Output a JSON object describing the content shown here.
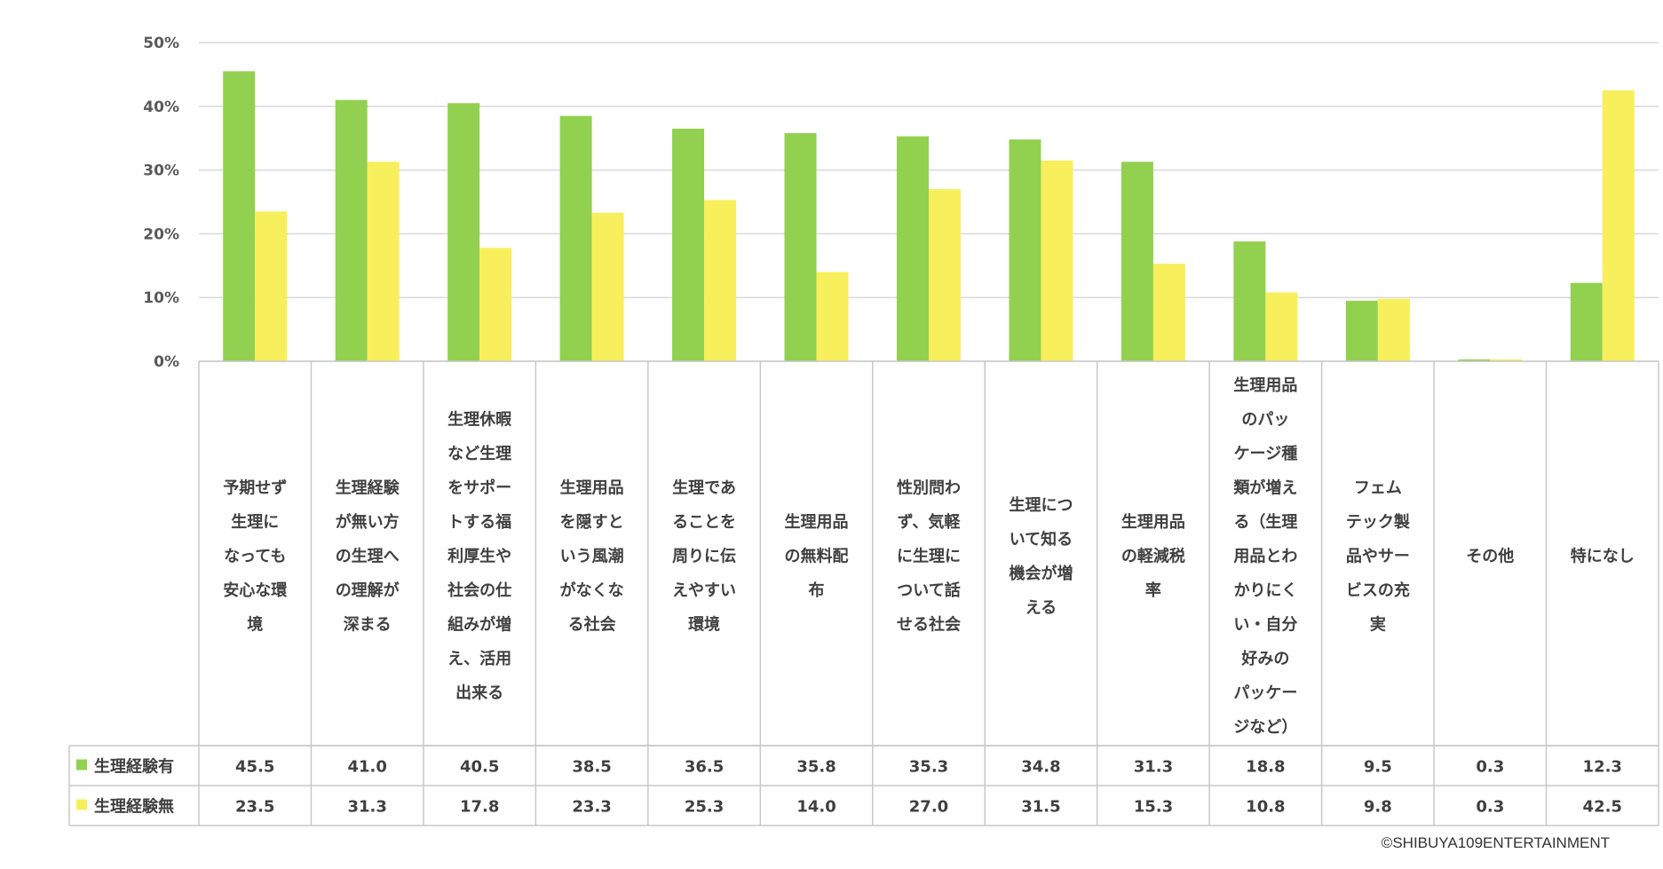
{
  "colors": {
    "series1": "#92d050",
    "series2": "#f8ef5c",
    "grid": "#d9d9d9",
    "border": "#c8c8c8"
  },
  "chart_data": {
    "type": "bar",
    "title": "",
    "xlabel": "",
    "ylabel": "",
    "ylim": [
      0,
      50
    ],
    "yticks": [
      "0%",
      "10%",
      "20%",
      "30%",
      "40%",
      "50%"
    ],
    "grid": true,
    "legend": "data-table-left",
    "categories": [
      [
        "予期せず",
        "生理に",
        "なっても",
        "安心な環",
        "境"
      ],
      [
        "生理経験",
        "が無い方",
        "の生理へ",
        "の理解が",
        "深まる"
      ],
      [
        "生理休暇",
        "など生理",
        "をサポー",
        "トする福",
        "利厚生や",
        "社会の仕",
        "組みが増",
        "え、活用",
        "出来る"
      ],
      [
        "生理用品",
        "を隠すと",
        "いう風潮",
        "がなくな",
        "る社会"
      ],
      [
        "生理であ",
        "ることを",
        "周りに伝",
        "えやすい",
        "環境"
      ],
      [
        "生理用品",
        "の無料配",
        "布"
      ],
      [
        "性別問わ",
        "ず、気軽",
        "に生理に",
        "ついて話",
        "せる社会"
      ],
      [
        "生理につ",
        "いて知る",
        "機会が増",
        "える"
      ],
      [
        "生理用品",
        "の軽減税",
        "率"
      ],
      [
        "生理用品",
        "のパッ",
        "ケージ種",
        "類が増え",
        "る（生理",
        "用品とわ",
        "かりにく",
        "い・自分",
        "好みの",
        "パッケー",
        "ジなど）"
      ],
      [
        "フェム",
        "テック製",
        "品やサー",
        "ビスの充",
        "実"
      ],
      [
        "その他"
      ],
      [
        "特になし"
      ]
    ],
    "series": [
      {
        "name": "生理経験有",
        "values": [
          45.5,
          41.0,
          40.5,
          38.5,
          36.5,
          35.8,
          35.3,
          34.8,
          31.3,
          18.8,
          9.5,
          0.3,
          12.3
        ],
        "labels": [
          "45.5",
          "41.0",
          "40.5",
          "38.5",
          "36.5",
          "35.8",
          "35.3",
          "34.8",
          "31.3",
          "18.8",
          "9.5",
          "0.3",
          "12.3"
        ]
      },
      {
        "name": "生理経験無",
        "values": [
          23.5,
          31.3,
          17.8,
          23.3,
          25.3,
          14.0,
          27.0,
          31.5,
          15.3,
          10.8,
          9.8,
          0.3,
          42.5
        ],
        "labels": [
          "23.5",
          "31.3",
          "17.8",
          "23.3",
          "25.3",
          "14.0",
          "27.0",
          "31.5",
          "15.3",
          "10.8",
          "9.8",
          "0.3",
          "42.5"
        ]
      }
    ]
  },
  "copyright": "©SHIBUYA109ENTERTAINMENT"
}
